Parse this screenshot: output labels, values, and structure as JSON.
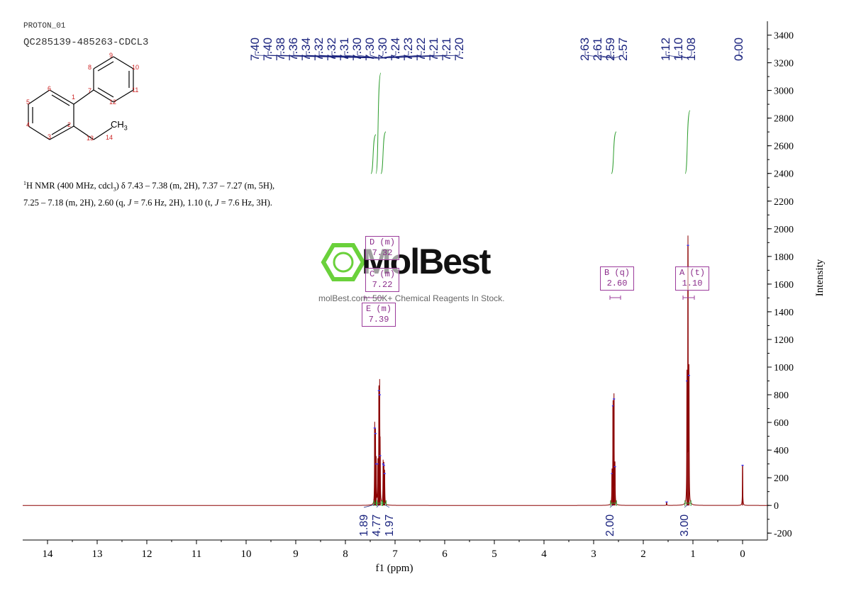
{
  "header": {
    "experiment": "PROTON_01",
    "sample": "QC285139-485263-CDCL3"
  },
  "nmr_description": {
    "part1": "H NMR (400 MHz, cdcl",
    "part2": ") δ 7.43 – 7.38 (m, 2H), 7.37 – 7.27 (m, 5H), 7.25 – 7.18 (m, 2H), 2.60 (q, ",
    "j1": "J",
    "part3": " = 7.6 Hz, 2H), 1.10 (t, ",
    "j2": "J",
    "part4": " = 7.6 Hz, 3H).",
    "sup1": "1",
    "sub3": "3"
  },
  "watermark": {
    "logo_text": "MolBest",
    "tagline": "molBest.com: 50K+ Chemical Reagents In Stock."
  },
  "structure": {
    "atom_labels": [
      "1",
      "2",
      "3",
      "4",
      "5",
      "6",
      "7",
      "8",
      "9",
      "10",
      "11",
      "12",
      "13",
      "14"
    ],
    "group_label": "CH",
    "group_sub": "3"
  },
  "multiplets": [
    {
      "label": "D (m)",
      "value": "7.32"
    },
    {
      "label": "C (m)",
      "value": "7.22"
    },
    {
      "label": "E (m)",
      "value": "7.39"
    },
    {
      "label": "B (q)",
      "value": "2.60"
    },
    {
      "label": "A (t)",
      "value": "1.10"
    }
  ],
  "colors": {
    "spectrum": "#8b0000",
    "peak_labels": "#1a237e",
    "integral": "#2e9d2e",
    "multiplet_box": "#9b3b9b",
    "atom_numbers": "#cc2222"
  },
  "chart_data": {
    "type": "line",
    "xlabel": "f1 (ppm)",
    "ylabel": "Intensity",
    "xlim": [
      14.5,
      -0.5
    ],
    "ylim": [
      -250,
      3500
    ],
    "x_ticks": [
      14,
      13,
      12,
      11,
      10,
      9,
      8,
      7,
      6,
      5,
      4,
      3,
      2,
      1,
      0
    ],
    "y_ticks": [
      -200,
      0,
      200,
      400,
      600,
      800,
      1000,
      1200,
      1400,
      1600,
      1800,
      2000,
      2200,
      2400,
      2600,
      2800,
      3000,
      3200,
      3400
    ],
    "peak_labels": [
      "7.40",
      "7.40",
      "7.38",
      "7.36",
      "7.34",
      "7.32",
      "7.32",
      "7.31",
      "7.30",
      "7.30",
      "7.30",
      "7.24",
      "7.23",
      "7.22",
      "7.21",
      "7.21",
      "7.20",
      "2.63",
      "2.61",
      "2.59",
      "2.57",
      "1.12",
      "1.10",
      "1.08",
      "0.00"
    ],
    "peak_groups": [
      {
        "labels": [
          "7.40",
          "7.40",
          "7.38",
          "7.36",
          "7.34",
          "7.32",
          "7.32",
          "7.31",
          "7.30",
          "7.30",
          "7.30",
          "7.24",
          "7.23",
          "7.22",
          "7.21",
          "7.21",
          "7.20"
        ],
        "center": 7.31
      },
      {
        "labels": [
          "2.63",
          "2.61",
          "2.59",
          "2.57"
        ],
        "center": 2.6
      },
      {
        "labels": [
          "1.12",
          "1.10",
          "1.08"
        ],
        "center": 1.1
      },
      {
        "labels": [
          "0.00"
        ],
        "center": 0.0
      }
    ],
    "peaks": [
      {
        "ppm": 7.41,
        "height": 560
      },
      {
        "ppm": 7.395,
        "height": 520
      },
      {
        "ppm": 7.38,
        "height": 300
      },
      {
        "ppm": 7.345,
        "height": 300
      },
      {
        "ppm": 7.325,
        "height": 830
      },
      {
        "ppm": 7.31,
        "height": 800
      },
      {
        "ppm": 7.3,
        "height": 360
      },
      {
        "ppm": 7.24,
        "height": 300
      },
      {
        "ppm": 7.225,
        "height": 290
      },
      {
        "ppm": 7.21,
        "height": 230
      },
      {
        "ppm": 2.63,
        "height": 230
      },
      {
        "ppm": 2.61,
        "height": 720
      },
      {
        "ppm": 2.59,
        "height": 770
      },
      {
        "ppm": 2.57,
        "height": 280
      },
      {
        "ppm": 1.12,
        "height": 900
      },
      {
        "ppm": 1.1,
        "height": 1880
      },
      {
        "ppm": 1.08,
        "height": 940
      },
      {
        "ppm": 1.53,
        "height": 25
      },
      {
        "ppm": 0.0,
        "height": 290
      }
    ],
    "integrals": [
      {
        "value": "1.89",
        "from": 7.43,
        "to": 7.38
      },
      {
        "value": "4.77",
        "from": 7.37,
        "to": 7.27
      },
      {
        "value": "1.97",
        "from": 7.25,
        "to": 7.18
      },
      {
        "value": "2.00",
        "from": 2.66,
        "to": 2.54
      },
      {
        "value": "3.00",
        "from": 1.16,
        "to": 1.04
      }
    ]
  }
}
